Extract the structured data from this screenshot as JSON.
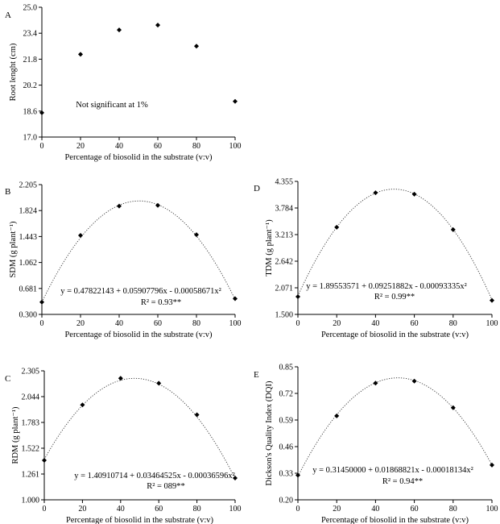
{
  "chart_data": [
    {
      "type": "scatter",
      "panel": "A",
      "xlabel": "Percentage of biosolid in the substrate (v:v)",
      "ylabel": "Root lenght (cm)",
      "xlim": [
        0,
        100
      ],
      "ylim": [
        17.0,
        25.0
      ],
      "xticks": [
        "0",
        "20",
        "40",
        "60",
        "80",
        "100"
      ],
      "yticks": [
        "17.0",
        "18.6",
        "20.2",
        "21.8",
        "23.4",
        "25.0"
      ],
      "x": [
        0,
        20,
        40,
        60,
        80,
        100
      ],
      "y": [
        18.5,
        22.1,
        23.6,
        23.9,
        22.6,
        19.2
      ],
      "annotations": [
        "Not significant at 1%"
      ],
      "fit": null
    },
    {
      "type": "scatter",
      "panel": "B",
      "xlabel": "Percentage of biosolid in the substrate (v:v)",
      "ylabel": "SDM (g plant⁻¹)",
      "xlim": [
        0,
        100
      ],
      "ylim": [
        0.3,
        2.205
      ],
      "xticks": [
        "0",
        "20",
        "40",
        "60",
        "80",
        "100"
      ],
      "yticks": [
        "0.300",
        "0.681",
        "1.062",
        "1.443",
        "1.824",
        "2.205"
      ],
      "x": [
        0,
        20,
        40,
        60,
        80,
        100
      ],
      "y": [
        0.48,
        1.46,
        1.89,
        1.9,
        1.47,
        0.53
      ],
      "annotations": [
        "y = 0.47822143 + 0.05907796x - 0.00058671x²",
        "R² = 0.93**"
      ],
      "fit": [
        0.47822143,
        0.05907796,
        -0.00058671
      ]
    },
    {
      "type": "scatter",
      "panel": "D",
      "xlabel": "Percentage of biosolid in the substrate (v:v)",
      "ylabel": "TDM (g plant⁻¹)",
      "xlim": [
        0,
        100
      ],
      "ylim": [
        1.5,
        4.355
      ],
      "xticks": [
        "0",
        "20",
        "40",
        "60",
        "80",
        "100"
      ],
      "yticks": [
        "1.500",
        "2.071",
        "2.642",
        "3.213",
        "3.784",
        "4.355"
      ],
      "x": [
        0,
        20,
        40,
        60,
        80,
        100
      ],
      "y": [
        1.88,
        3.37,
        4.11,
        4.08,
        3.32,
        1.8
      ],
      "annotations": [
        "y = 1.89553571 + 0.09251882x - 0.00093335x²",
        "R² = 0.99**"
      ],
      "fit": [
        1.89553571,
        0.09251882,
        -0.00093335
      ]
    },
    {
      "type": "scatter",
      "panel": "C",
      "xlabel": "Percentage of biosolid in the substrate (v:v)",
      "ylabel": "RDM (g plant⁻¹)",
      "xlim": [
        0,
        100
      ],
      "ylim": [
        1.0,
        2.305
      ],
      "xticks": [
        "0",
        "20",
        "40",
        "60",
        "80",
        "100"
      ],
      "yticks": [
        "1.000",
        "1.261",
        "1.522",
        "1.783",
        "2.044",
        "2.305"
      ],
      "x": [
        0,
        20,
        40,
        60,
        80,
        100
      ],
      "y": [
        1.4,
        1.96,
        2.23,
        2.18,
        1.86,
        1.22
      ],
      "annotations": [
        "y = 1.40910714 + 0.03464525x - 0.00036596x²",
        "R² = 089**"
      ],
      "fit": [
        1.40910714,
        0.03464525,
        -0.00036596
      ]
    },
    {
      "type": "scatter",
      "panel": "E",
      "xlabel": "Percentage of biosolid in the substrate (v:v)",
      "ylabel": "Dickson's Quality Index (DQI)",
      "xlim": [
        0,
        100
      ],
      "ylim": [
        0.2,
        0.85
      ],
      "xticks": [
        "0",
        "20",
        "40",
        "60",
        "80",
        "100"
      ],
      "yticks": [
        "0.20",
        "0.33",
        "0.46",
        "0.59",
        "0.72",
        "0.85"
      ],
      "x": [
        0,
        20,
        40,
        60,
        80,
        100
      ],
      "y": [
        0.32,
        0.61,
        0.77,
        0.78,
        0.65,
        0.37
      ],
      "annotations": [
        "y = 0.31450000 + 0.01868821x - 0.00018134x²",
        "R² = 0.94**"
      ],
      "fit": [
        0.3145,
        0.01868821,
        -0.00018134
      ]
    }
  ]
}
